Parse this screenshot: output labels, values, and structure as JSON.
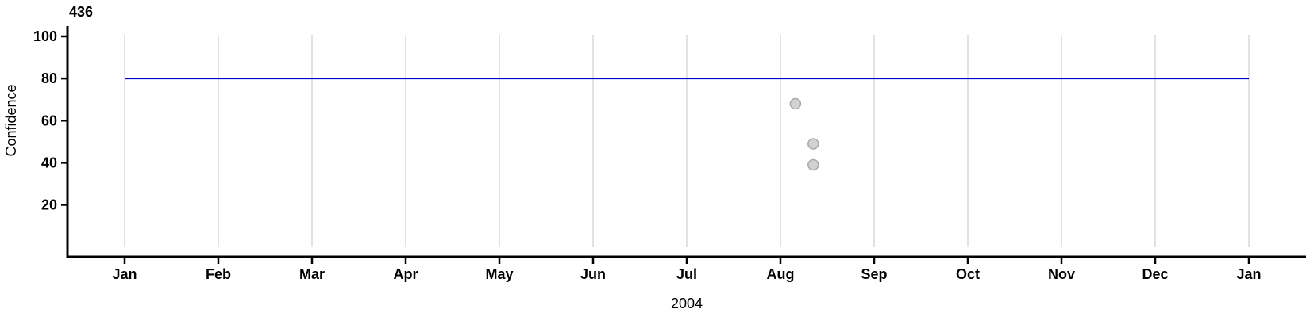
{
  "chart_data": {
    "type": "scatter",
    "title": "",
    "ylabel": "Confidence",
    "xlabel": "2004",
    "annotation": {
      "text": "436",
      "position": "top-left"
    },
    "x_axis": {
      "year": "2004",
      "tick_labels": [
        "Jan",
        "Feb",
        "Mar",
        "Apr",
        "May",
        "Jun",
        "Jul",
        "Aug",
        "Sep",
        "Oct",
        "Nov",
        "Dec",
        "Jan"
      ],
      "range_months": [
        0,
        12
      ]
    },
    "y_axis": {
      "label": "Confidence",
      "ticks": [
        20,
        40,
        60,
        80,
        100
      ],
      "range": [
        0,
        105
      ]
    },
    "grid": {
      "vertical": true,
      "horizontal": false,
      "color": "#D8D8D8"
    },
    "reference_line": {
      "y": 80,
      "color": "#0000CD",
      "extent_months": [
        0,
        12
      ]
    },
    "points": [
      {
        "month_offset": 7.16,
        "approx_date": "Aug 6",
        "y": 68
      },
      {
        "month_offset": 7.35,
        "approx_date": "Aug 11",
        "y": 49
      },
      {
        "month_offset": 7.35,
        "approx_date": "Aug 11",
        "y": 39
      }
    ],
    "point_style": {
      "fill": "#D2D2D2",
      "stroke": "#A9A9A9",
      "radius": 6.5
    }
  }
}
